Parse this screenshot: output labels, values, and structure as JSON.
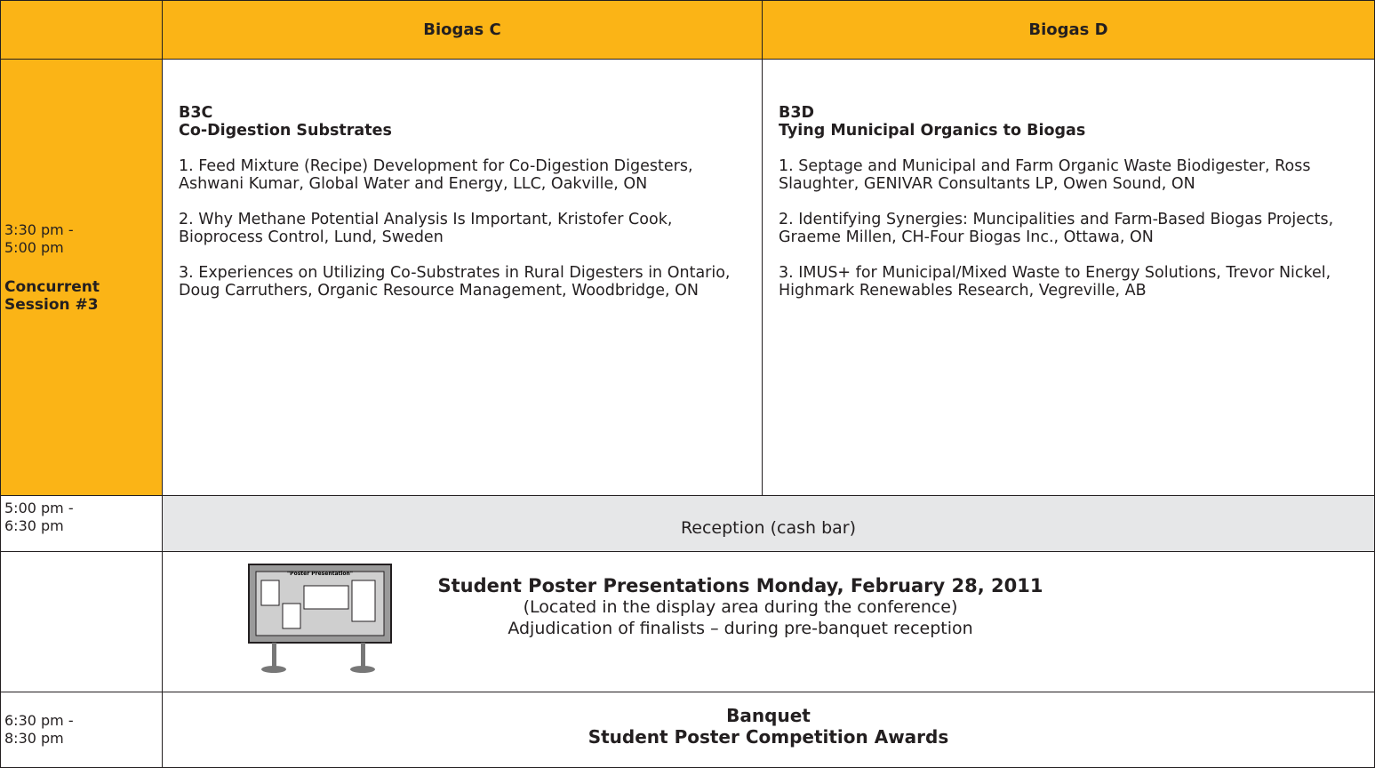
{
  "header": {
    "columns": [
      "Biogas C",
      "Biogas D"
    ]
  },
  "session": {
    "time": [
      "3:30 pm -",
      "5:00 pm"
    ],
    "label": [
      "Concurrent",
      "Session #3"
    ],
    "tracks": [
      {
        "code": "B3C",
        "title": "Co-Digestion Substrates",
        "talks": [
          "1. Feed Mixture (Recipe) Development for Co-Digestion Digesters, Ashwani Kumar, Global Water and Energy, LLC, Oakville, ON",
          "2. Why Methane Potential Analysis Is Important, Kristofer Cook, Bioprocess Control, Lund, Sweden",
          "3. Experiences on Utilizing Co-Substrates in Rural Digesters in Ontario, Doug Carruthers, Organic Resource Management, Woodbridge, ON"
        ]
      },
      {
        "code": "B3D",
        "title": "Tying Municipal Organics to Biogas",
        "talks": [
          "1. Septage and Municipal and Farm Organic Waste Biodigester, Ross Slaughter, GENIVAR Consultants LP, Owen Sound, ON",
          "2. Identifying Synergies: Muncipalities and Farm-Based Biogas Projects, Graeme Millen, CH-Four Biogas Inc., Ottawa, ON",
          "3. IMUS+ for Municipal/Mixed Waste to Energy Solutions, Trevor Nickel, Highmark Renewables Research, Vegreville, AB"
        ]
      }
    ]
  },
  "reception": {
    "time": [
      "5:00 pm -",
      "6:30 pm"
    ],
    "text": "Reception (cash bar)"
  },
  "posters": {
    "board_title": "\"Poster Presentation\"",
    "title": "Student Poster Presentations Monday, February 28, 2011",
    "lines": [
      "(Located in the display area during the conference)",
      "Adjudication of finalists – during pre-banquet reception"
    ]
  },
  "banquet": {
    "time": [
      "6:30 pm -",
      "8:30 pm"
    ],
    "lines": [
      "Banquet",
      "Student Poster Competition Awards"
    ]
  }
}
